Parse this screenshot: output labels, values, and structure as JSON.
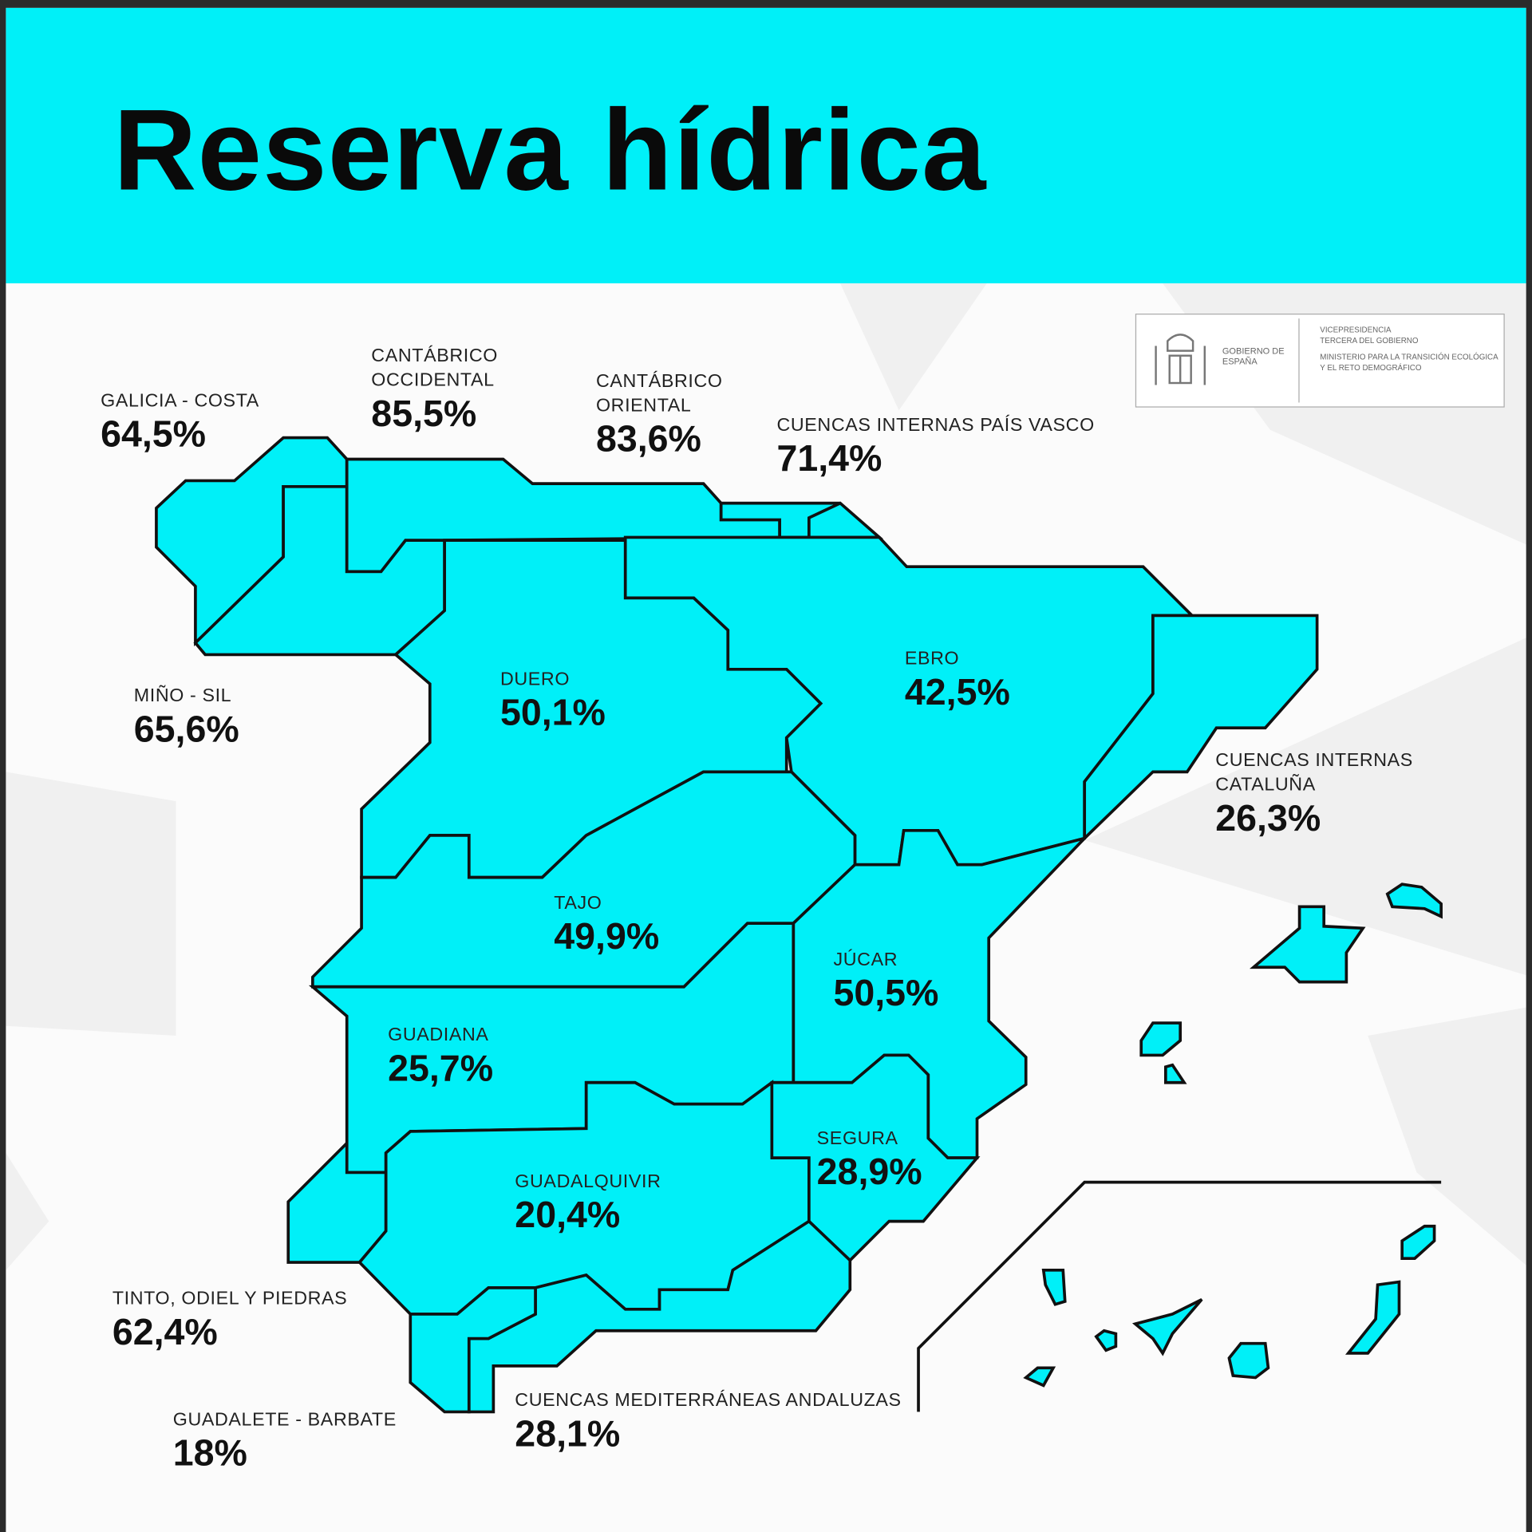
{
  "title": "Reserva hídrica",
  "colors": {
    "accent": "#00f0f8",
    "region_fill": "#00f0f8",
    "border": "#111111",
    "background": "#fbfbfb"
  },
  "logo": {
    "left": "GOBIERNO DE ESPAÑA",
    "right_line1": "VICEPRESIDENCIA TERCERA DEL GOBIERNO",
    "right_line2": "MINISTERIO PARA LA TRANSICIÓN ECOLÓGICA Y EL RETO DEMOGRÁFICO"
  },
  "regions": {
    "galicia": {
      "name": "GALICIA - COSTA",
      "value": "64,5%"
    },
    "cant_occ": {
      "name": "CANTÁBRICO OCCIDENTAL",
      "value": "85,5%"
    },
    "cant_or": {
      "name": "CANTÁBRICO ORIENTAL",
      "value": "83,6%"
    },
    "pais_vasco": {
      "name": "CUENCAS INTERNAS PAÍS VASCO",
      "value": "71,4%"
    },
    "mino": {
      "name": "MIÑO - SIL",
      "value": "65,6%"
    },
    "duero": {
      "name": "DUERO",
      "value": "50,1%"
    },
    "ebro": {
      "name": "EBRO",
      "value": "42,5%"
    },
    "cataluna": {
      "name": "CUENCAS INTERNAS CATALUÑA",
      "value": "26,3%"
    },
    "tajo": {
      "name": "TAJO",
      "value": "49,9%"
    },
    "jucar": {
      "name": "JÚCAR",
      "value": "50,5%"
    },
    "guadiana": {
      "name": "GUADIANA",
      "value": "25,7%"
    },
    "segura": {
      "name": "SEGURA",
      "value": "28,9%"
    },
    "guadalquivir": {
      "name": "GUADALQUIVIR",
      "value": "20,4%"
    },
    "tinto": {
      "name": "TINTO, ODIEL Y PIEDRAS",
      "value": "62,4%"
    },
    "guadalete": {
      "name": "GUADALETE - BARBATE",
      "value": "18%"
    },
    "mediterraneas": {
      "name": "CUENCAS MEDITERRÁNEAS ANDALUZAS",
      "value": "28,1%"
    }
  }
}
